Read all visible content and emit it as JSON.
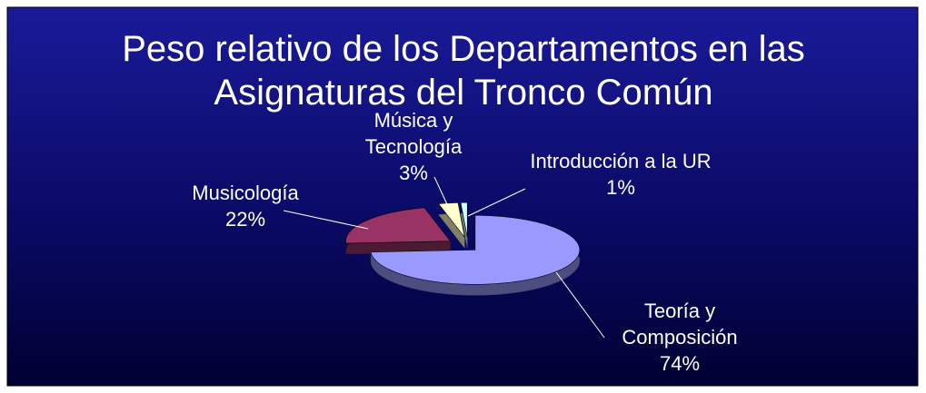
{
  "chart_data": {
    "type": "pie3d",
    "title": "Peso relativo de los Departamentos en las Asignaturas del Tronco Común",
    "categories": [
      "Teoría y Composición",
      "Musicología",
      "Música y Tecnología",
      "Introducción a la UR"
    ],
    "values": [
      74,
      22,
      3,
      1
    ],
    "value_labels": [
      "74%",
      "22%",
      "3%",
      "1%"
    ],
    "colors": [
      "#9999ff",
      "#993366",
      "#ffffcc",
      "#ccffff"
    ]
  }
}
